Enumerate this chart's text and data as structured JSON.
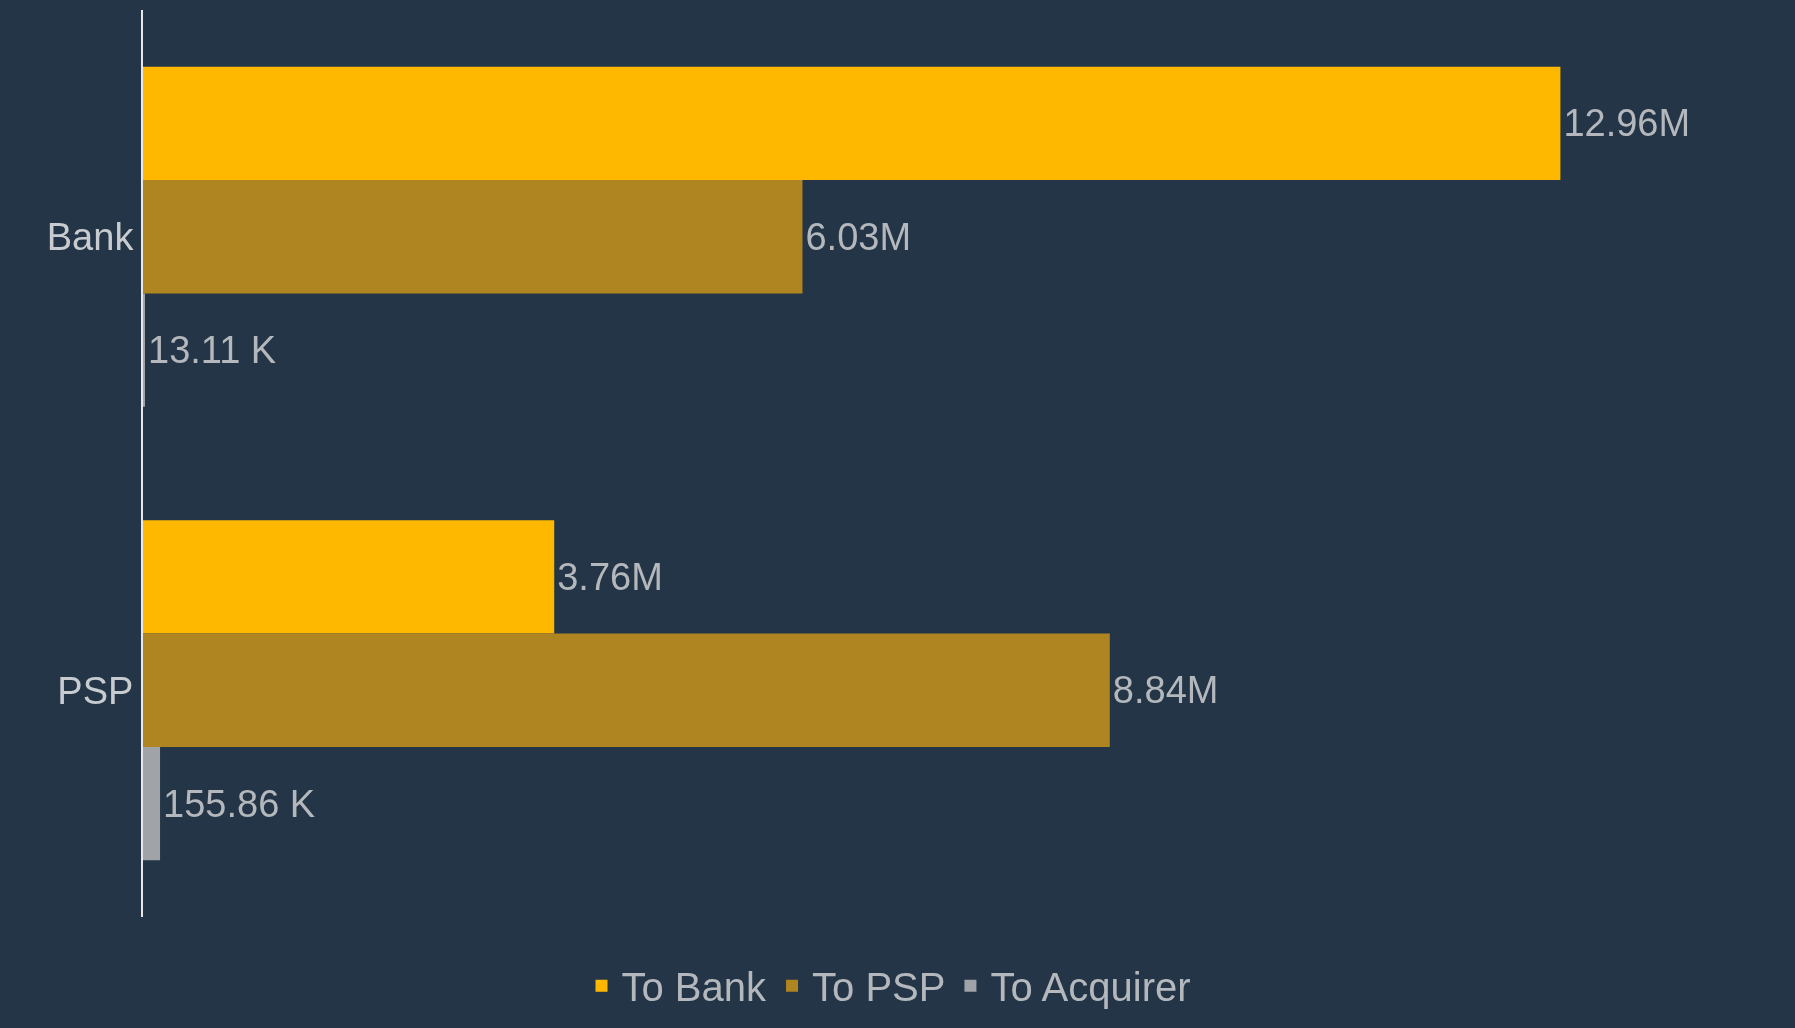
{
  "chart_data": {
    "type": "bar",
    "orientation": "horizontal",
    "categories": [
      "Bank",
      "PSP"
    ],
    "series": [
      {
        "name": "To Bank",
        "color": "#ffb800",
        "values": [
          12960000,
          3760000
        ],
        "value_labels": [
          "12.96M",
          "3.76M"
        ]
      },
      {
        "name": "To PSP",
        "color": "#ae8520",
        "values": [
          6030000,
          8840000
        ],
        "value_labels": [
          "6.03M",
          "8.84M"
        ]
      },
      {
        "name": "To Acquirer",
        "color": "#a0a4a8",
        "values": [
          13110,
          155860
        ],
        "value_labels": [
          "13.11 K",
          "155.86 K"
        ]
      }
    ],
    "legend": "bottom",
    "tick_labels": "y"
  }
}
